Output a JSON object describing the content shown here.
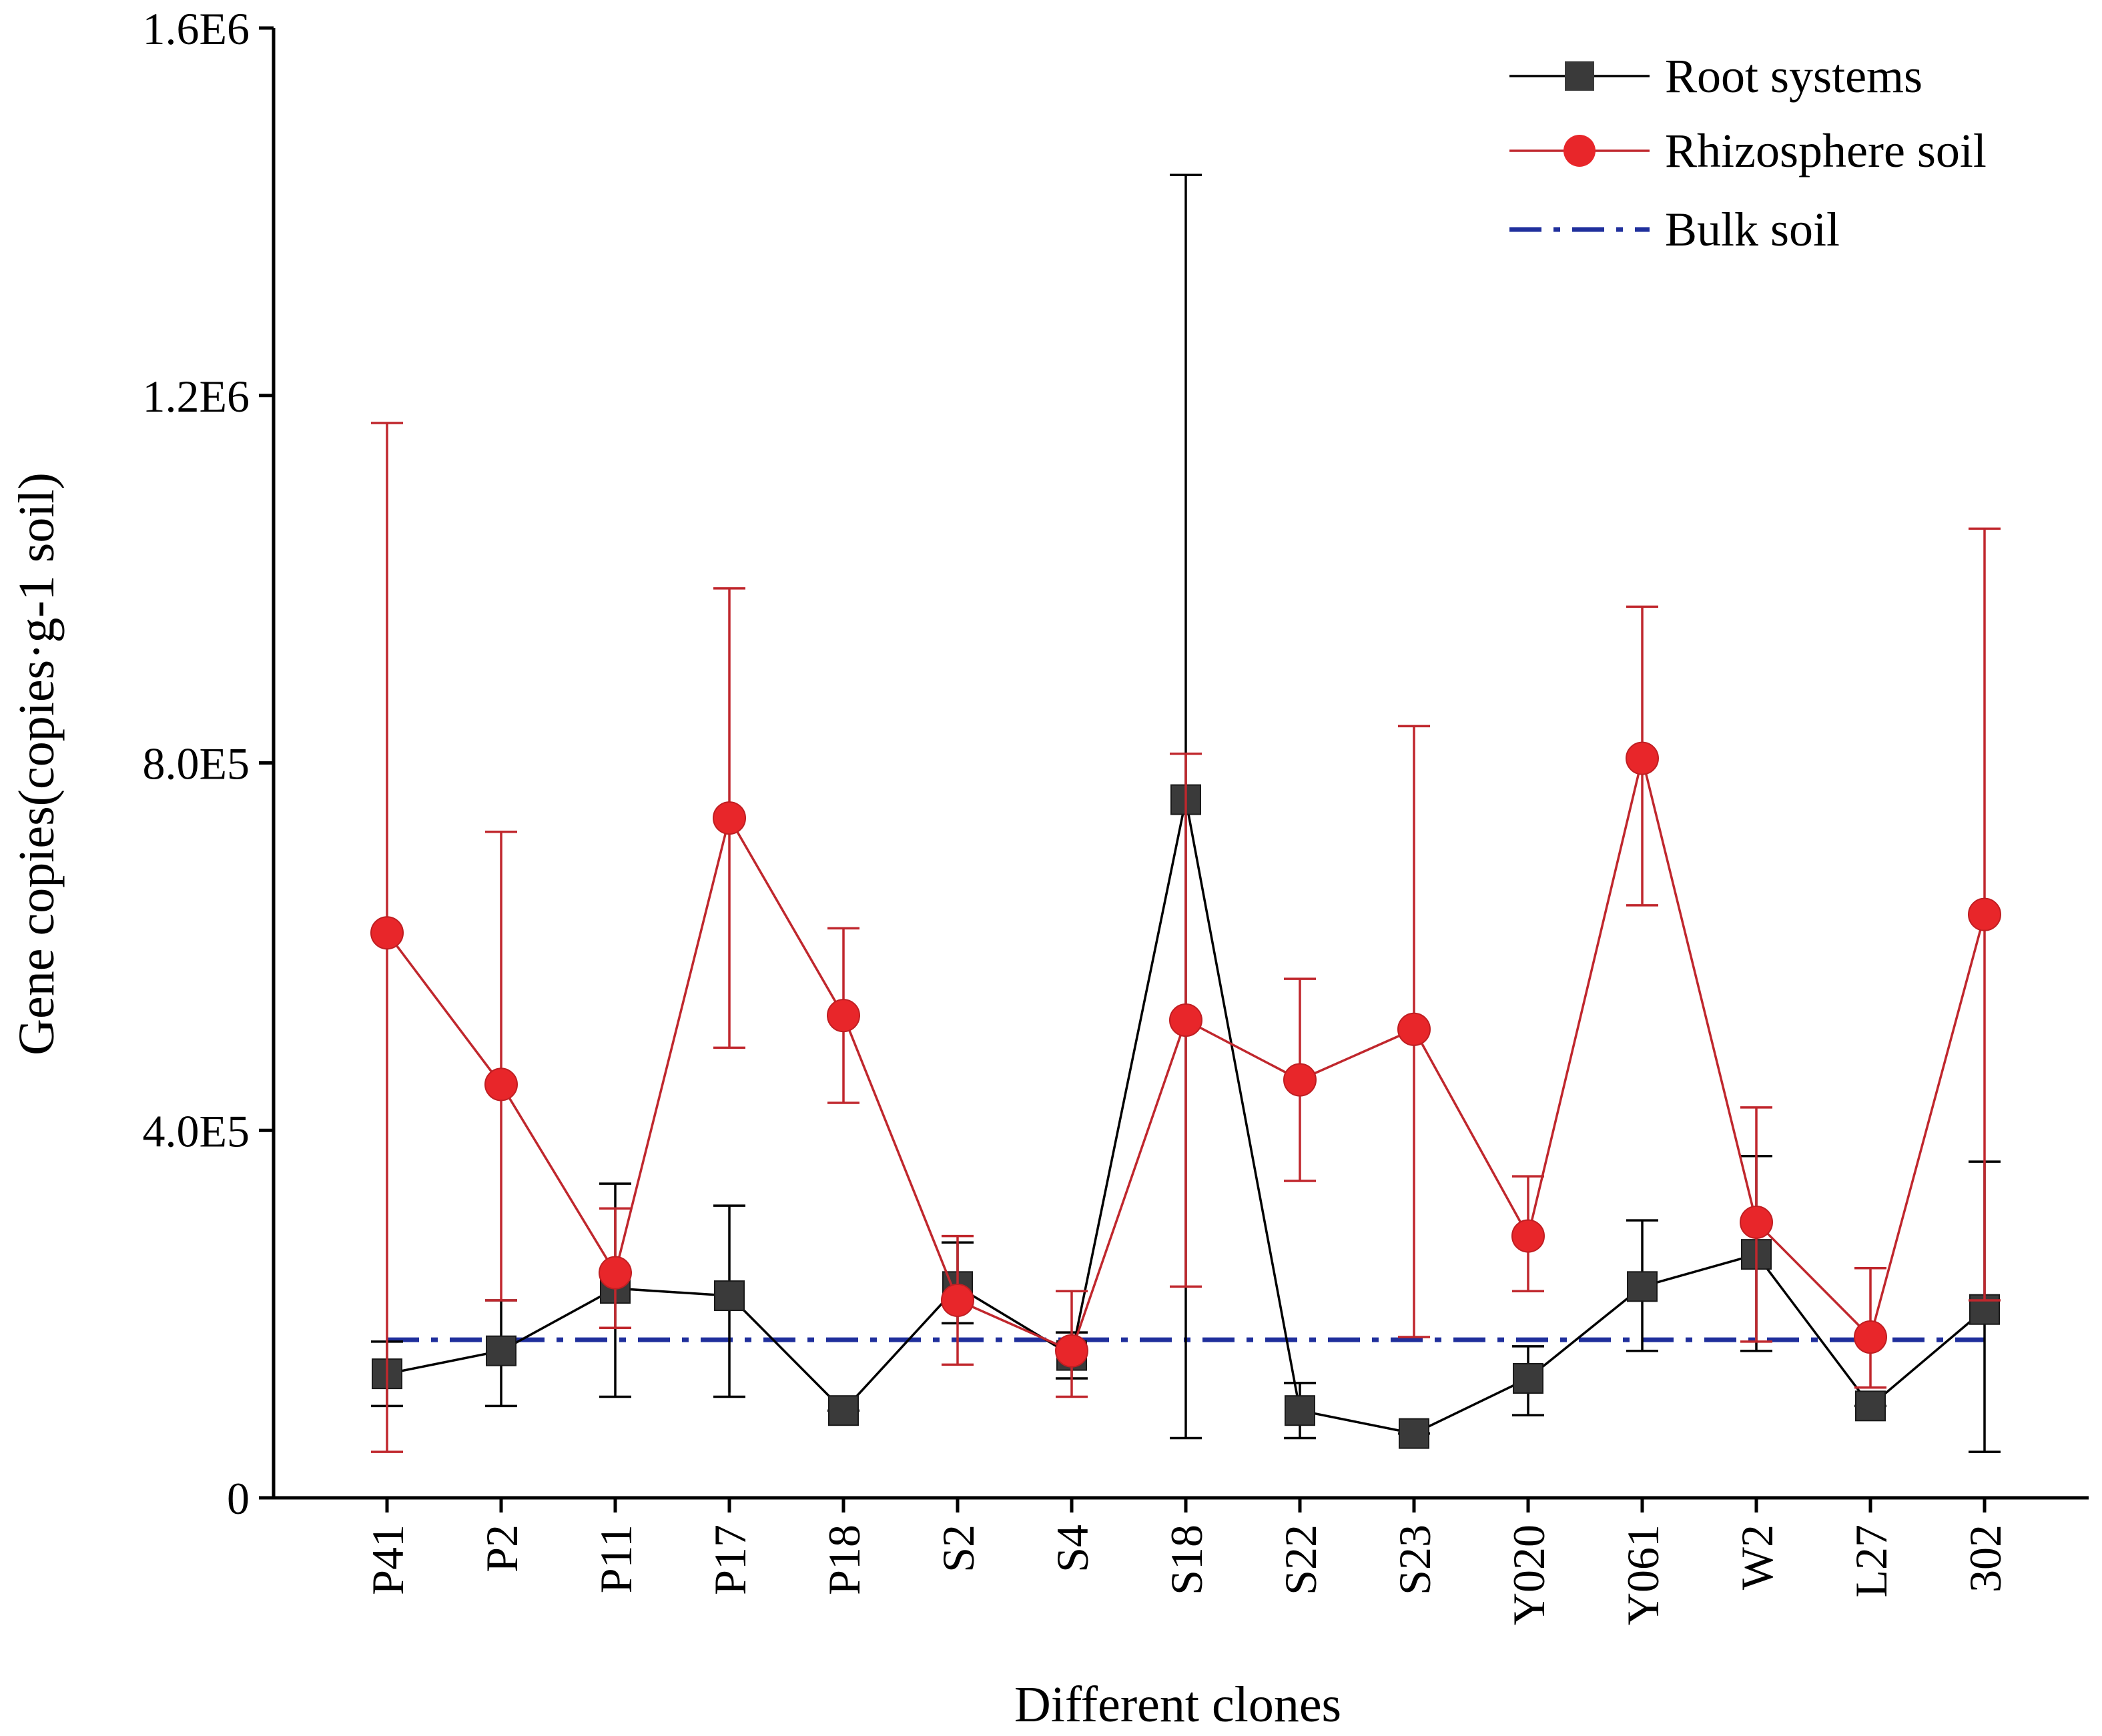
{
  "chart_data": {
    "type": "line",
    "xlabel": "Different clones",
    "ylabel": "Gene copies(copies·g-1 soil)",
    "ylim": [
      0,
      1600000
    ],
    "yticks": [
      0,
      400000,
      800000,
      1200000,
      1600000
    ],
    "ytick_labels": [
      "0",
      "4.0E5",
      "8.0E5",
      "1.2E6",
      "1.6E6"
    ],
    "categories": [
      "P41",
      "P2",
      "P11",
      "P17",
      "P18",
      "S2",
      "S4",
      "S18",
      "S22",
      "S23",
      "Y020",
      "Y061",
      "W2",
      "L27",
      "302"
    ],
    "legend_position": "top-right",
    "series": [
      {
        "name": "Root systems",
        "color": "#3a3a3a",
        "line_color": "#000000",
        "marker": "square",
        "values": [
          135000,
          160000,
          228000,
          220000,
          95000,
          230000,
          155000,
          760000,
          95000,
          70000,
          130000,
          230000,
          265000,
          100000,
          205000
        ],
        "err_low": [
          100000,
          100000,
          110000,
          110000,
          95000,
          190000,
          130000,
          65000,
          65000,
          70000,
          90000,
          160000,
          160000,
          100000,
          50000
        ],
        "err_high": [
          170000,
          215000,
          342000,
          318000,
          95000,
          278000,
          180000,
          1440000,
          125000,
          70000,
          165000,
          302000,
          372000,
          100000,
          366000
        ]
      },
      {
        "name": "Rhizosphere soil",
        "color": "#e8262a",
        "line_color": "#c0272d",
        "marker": "circle",
        "values": [
          615000,
          450000,
          245000,
          740000,
          525000,
          215000,
          160000,
          520000,
          455000,
          510000,
          285000,
          805000,
          300000,
          175000,
          635000
        ],
        "err_low": [
          50000,
          215000,
          185000,
          490000,
          430000,
          145000,
          110000,
          230000,
          345000,
          175000,
          225000,
          645000,
          170000,
          120000,
          215000
        ],
        "err_high": [
          1170000,
          725000,
          315000,
          990000,
          620000,
          285000,
          225000,
          810000,
          565000,
          840000,
          350000,
          970000,
          425000,
          250000,
          1055000
        ]
      },
      {
        "name": "Bulk soil",
        "color": "#1f2f9c",
        "style": "dash-dot",
        "value": 172000
      }
    ]
  }
}
